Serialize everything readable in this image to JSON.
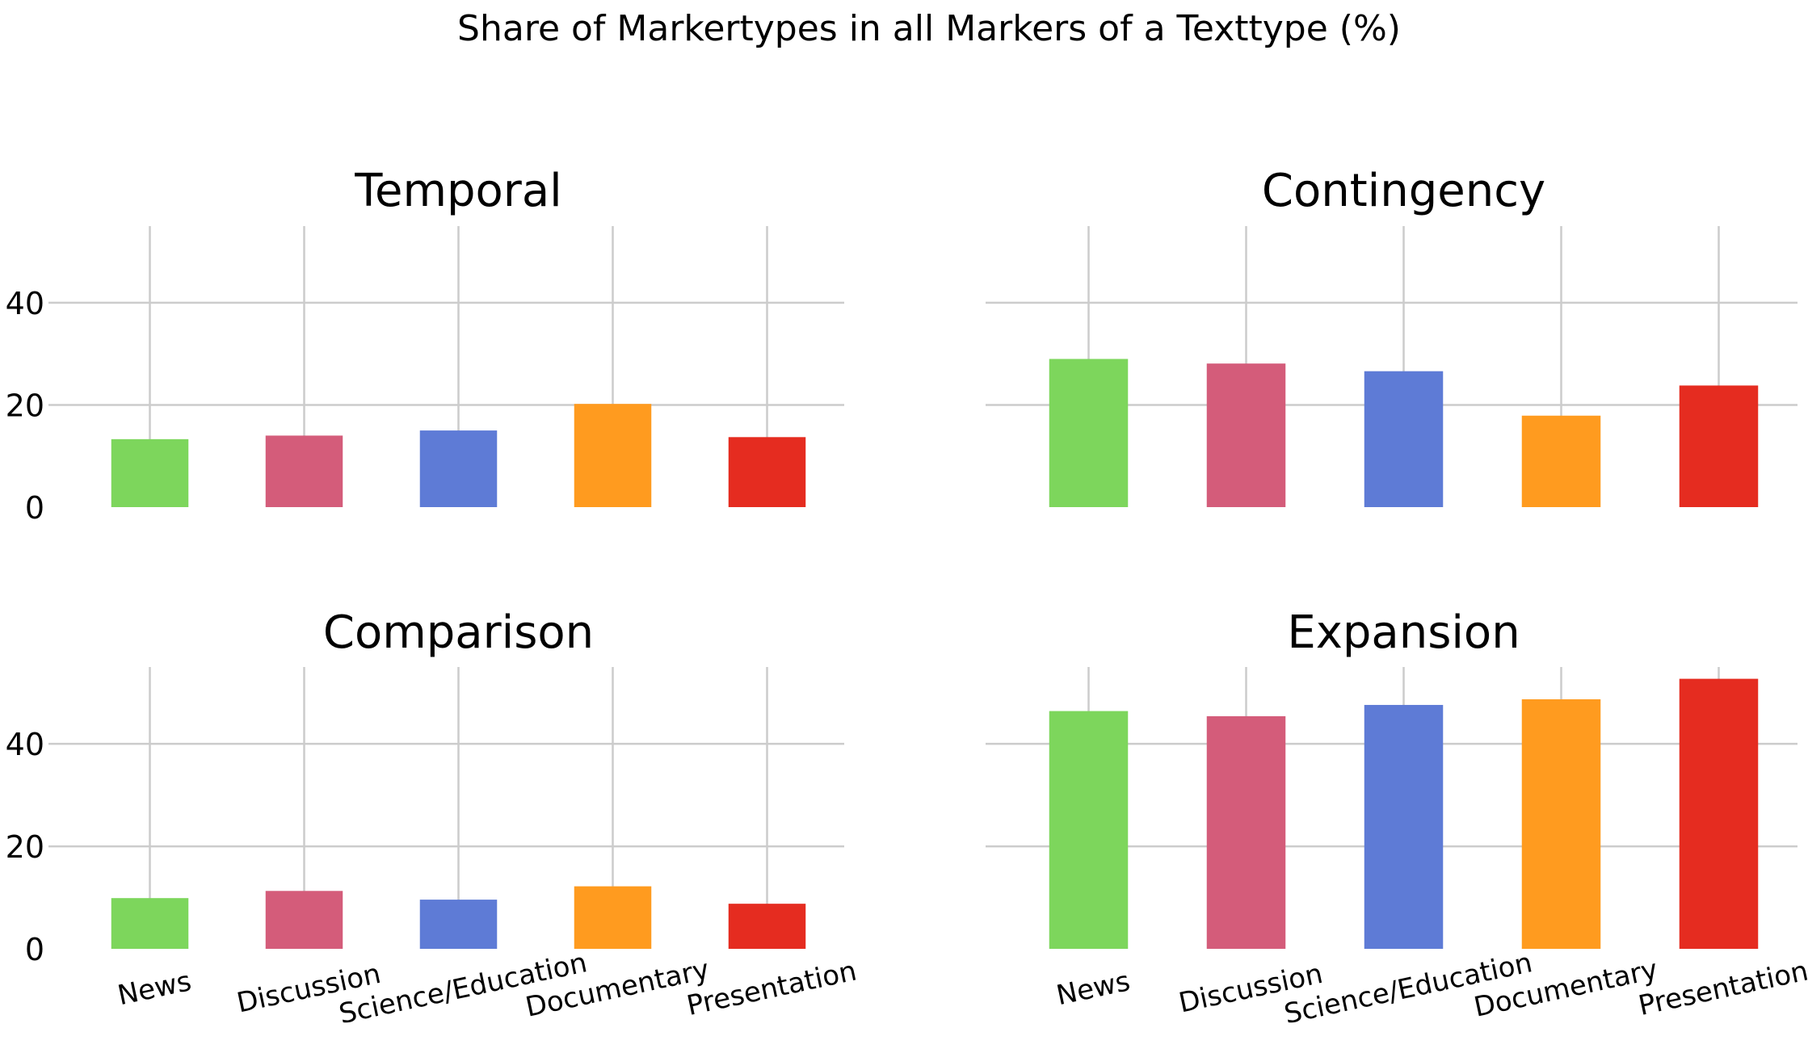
{
  "chart_data": {
    "type": "bar",
    "title": "Share of Markertypes in all Markers of a Texttype (%)",
    "categories": [
      "News",
      "Discussion",
      "Science/Education",
      "Documentary",
      "Presentation"
    ],
    "colors": [
      "#7dd65c",
      "#d45c7a",
      "#5e7bd6",
      "#ff9b1f",
      "#e52c20"
    ],
    "ylim": [
      0,
      55
    ],
    "yticks": [
      0,
      20,
      40
    ],
    "grid": true,
    "legend": false,
    "panels": [
      {
        "title": "Temporal",
        "values": [
          13.3,
          14.0,
          15.0,
          20.2,
          13.7
        ]
      },
      {
        "title": "Contingency",
        "values": [
          29.0,
          28.1,
          26.6,
          17.9,
          23.8
        ]
      },
      {
        "title": "Comparison",
        "values": [
          9.9,
          11.3,
          9.6,
          12.2,
          8.8
        ]
      },
      {
        "title": "Expansion",
        "values": [
          46.4,
          45.4,
          47.6,
          48.7,
          52.7
        ]
      }
    ]
  }
}
